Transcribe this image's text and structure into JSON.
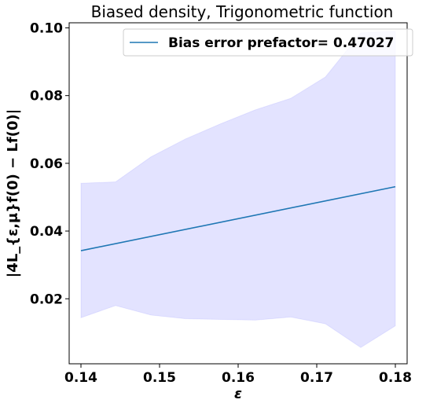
{
  "chart_data": {
    "type": "line",
    "title": "Biased density, Trigonometric function",
    "xlabel": "ε",
    "ylabel": "|4L_{ε,μ}f(0) − Lf(0)|",
    "xlim": [
      0.1385,
      0.1815
    ],
    "ylim": [
      0.0008,
      0.1015
    ],
    "x_ticks": [
      "0.14",
      "0.15",
      "0.16",
      "0.17",
      "0.18"
    ],
    "y_ticks": [
      "0.02",
      "0.04",
      "0.06",
      "0.08",
      "0.10"
    ],
    "grid": false,
    "legend_position": "top-right",
    "series": [
      {
        "name": "Bias error prefactor= 0.47027",
        "color": "#1f77b4",
        "x": [
          0.14,
          0.18
        ],
        "y": [
          0.0342,
          0.0531
        ]
      }
    ],
    "band": {
      "color": "#0000ff",
      "opacity": 0.11,
      "x": [
        0.14,
        0.1444,
        0.1489,
        0.1533,
        0.1578,
        0.1622,
        0.1667,
        0.1711,
        0.1756,
        0.18
      ],
      "upper": [
        0.0541,
        0.0545,
        0.0619,
        0.0672,
        0.0717,
        0.0758,
        0.0792,
        0.0855,
        0.0985,
        0.099
      ],
      "lower": [
        0.0144,
        0.018,
        0.0152,
        0.0141,
        0.0139,
        0.0137,
        0.0146,
        0.0126,
        0.0056,
        0.012
      ]
    }
  }
}
